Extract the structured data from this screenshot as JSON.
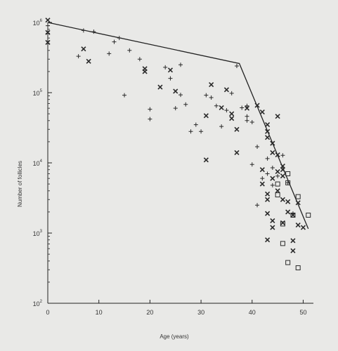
{
  "chart_data": {
    "type": "scatter",
    "title": "",
    "xlabel": "Age (years)",
    "ylabel": "Number of follicles",
    "xlim": [
      0,
      52
    ],
    "ylim_log10": [
      2,
      6
    ],
    "y_scale": "log",
    "grid": false,
    "x_ticks": [
      "0",
      "10",
      "20",
      "30",
      "40",
      "50"
    ],
    "y_ticks": [
      {
        "base": "10",
        "exp": "2",
        "value": 100
      },
      {
        "base": "10",
        "exp": "3",
        "value": 1000
      },
      {
        "base": "10",
        "exp": "4",
        "value": 10000
      },
      {
        "base": "10",
        "exp": "5",
        "value": 100000
      },
      {
        "base": "10",
        "exp": "6",
        "value": 1000000
      }
    ],
    "fit_line": [
      [
        0,
        1000000
      ],
      [
        37.5,
        260000
      ],
      [
        51,
        1150
      ]
    ],
    "series": [
      {
        "marker": "plus",
        "points": [
          [
            0,
            900000
          ],
          [
            0,
            700000
          ],
          [
            6,
            330000
          ],
          [
            7,
            770000
          ],
          [
            9,
            740000
          ],
          [
            12,
            360000
          ],
          [
            13,
            530000
          ],
          [
            14,
            600000
          ],
          [
            15,
            92000
          ],
          [
            16,
            400000
          ],
          [
            18,
            300000
          ],
          [
            20,
            58000
          ],
          [
            20,
            42000
          ],
          [
            23,
            230000
          ],
          [
            24,
            160000
          ],
          [
            25,
            60000
          ],
          [
            26,
            250000
          ],
          [
            26,
            93000
          ],
          [
            27,
            68000
          ],
          [
            28,
            28000
          ],
          [
            29,
            35000
          ],
          [
            30,
            28000
          ],
          [
            31,
            92000
          ],
          [
            32,
            85000
          ],
          [
            33,
            65000
          ],
          [
            34,
            33000
          ],
          [
            35,
            56000
          ],
          [
            36,
            98000
          ],
          [
            37,
            240000
          ],
          [
            38,
            61000
          ],
          [
            39,
            46000
          ],
          [
            39,
            40000
          ],
          [
            40,
            38000
          ],
          [
            41,
            17000
          ],
          [
            42,
            6000
          ],
          [
            43,
            11500
          ],
          [
            43,
            7000
          ],
          [
            44,
            4800
          ],
          [
            45,
            6500
          ],
          [
            46,
            12800
          ],
          [
            41,
            2500
          ],
          [
            47,
            5200
          ],
          [
            48,
            1900
          ],
          [
            39,
            65000
          ],
          [
            44,
            8500
          ],
          [
            40,
            9500
          ]
        ]
      },
      {
        "marker": "x",
        "points": [
          [
            0,
            1080000
          ],
          [
            0,
            720000
          ],
          [
            0,
            520000
          ],
          [
            7,
            420000
          ],
          [
            8,
            280000
          ],
          [
            19,
            220000
          ],
          [
            19,
            200000
          ],
          [
            22,
            120000
          ],
          [
            24,
            210000
          ],
          [
            25,
            105000
          ],
          [
            31,
            47000
          ],
          [
            31,
            11000
          ],
          [
            32,
            130000
          ],
          [
            34,
            61000
          ],
          [
            35,
            110000
          ],
          [
            36,
            50000
          ],
          [
            36,
            43000
          ],
          [
            37,
            30000
          ],
          [
            37,
            14000
          ],
          [
            39,
            60000
          ],
          [
            41,
            66000
          ],
          [
            42,
            53000
          ],
          [
            42,
            8000
          ],
          [
            43,
            35000
          ],
          [
            43,
            28000
          ],
          [
            43,
            23000
          ],
          [
            44,
            19000
          ],
          [
            44,
            14000
          ],
          [
            45,
            46000
          ],
          [
            45,
            13000
          ],
          [
            45,
            7500
          ],
          [
            46,
            9000
          ],
          [
            46,
            8000
          ],
          [
            46,
            6500
          ],
          [
            44,
            6000
          ],
          [
            43,
            3600
          ],
          [
            43,
            3000
          ],
          [
            43,
            1900
          ],
          [
            44,
            1500
          ],
          [
            44,
            1200
          ],
          [
            43,
            800
          ],
          [
            42,
            5000
          ],
          [
            46,
            3000
          ],
          [
            45,
            4000
          ],
          [
            47,
            2800
          ],
          [
            47,
            2000
          ],
          [
            48,
            1800
          ],
          [
            48,
            780
          ],
          [
            48,
            560
          ],
          [
            49,
            2700
          ],
          [
            49,
            1300
          ],
          [
            50,
            1200
          ],
          [
            46,
            1400
          ]
        ]
      },
      {
        "marker": "square",
        "points": [
          [
            45,
            3500
          ],
          [
            45,
            5000
          ],
          [
            46,
            1350
          ],
          [
            46,
            710
          ],
          [
            47,
            7000
          ],
          [
            47,
            380
          ],
          [
            49,
            320
          ],
          [
            49,
            3300
          ],
          [
            51,
            1800
          ],
          [
            47,
            5200
          ],
          [
            48,
            1800
          ]
        ]
      }
    ]
  }
}
